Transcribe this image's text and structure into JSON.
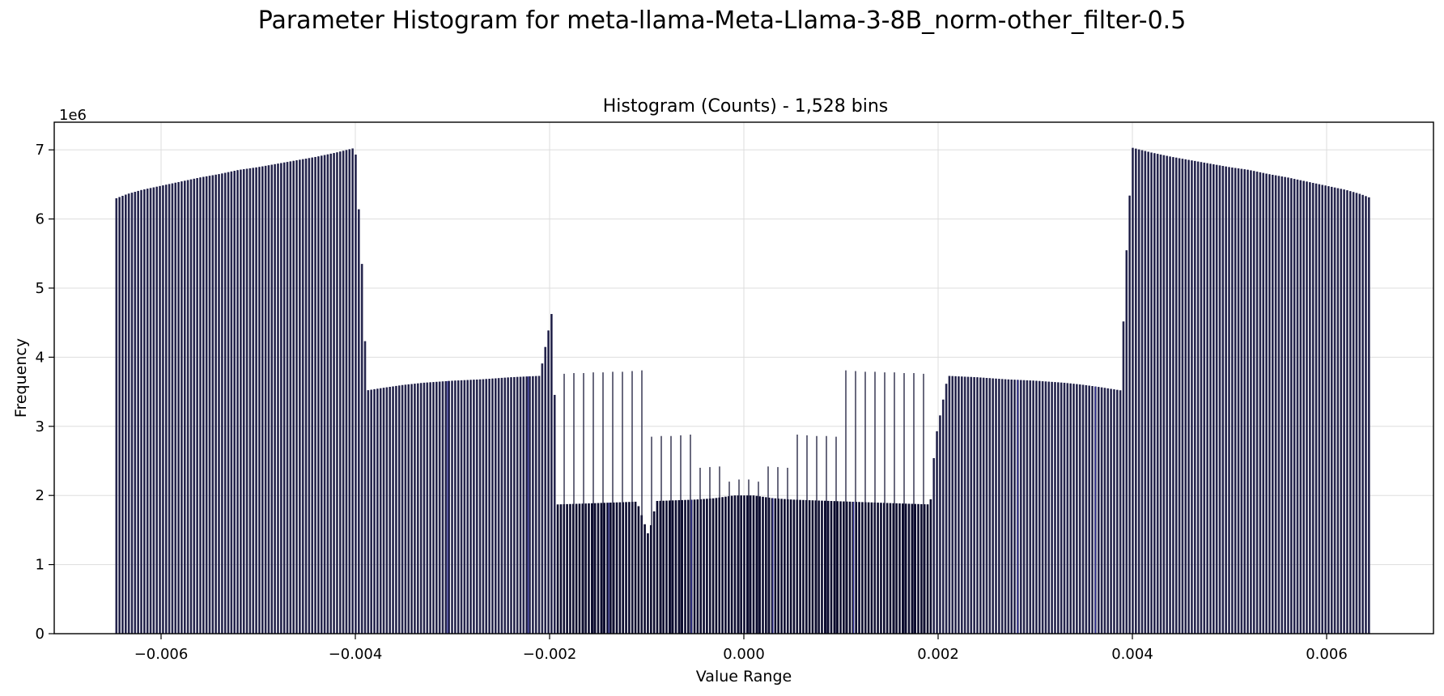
{
  "figure": {
    "title": "Parameter Histogram for meta-llama-Meta-Llama-3-8B_norm-other_filter-0.5"
  },
  "chart_data": {
    "type": "bar",
    "title": "Histogram (Counts) - 1,528 bins",
    "xlabel": "Value Range",
    "ylabel": "Frequency",
    "y_scale_label": "1e6",
    "xlim": [
      -0.0071,
      0.0071
    ],
    "ylim": [
      0,
      7400000
    ],
    "xticks": [
      -0.006,
      -0.004,
      -0.002,
      0.0,
      0.002,
      0.004,
      0.006
    ],
    "xtick_labels": [
      "−0.006",
      "−0.004",
      "−0.002",
      "0.000",
      "0.002",
      "0.004",
      "0.006"
    ],
    "yticks": [
      0,
      1000000,
      2000000,
      3000000,
      4000000,
      5000000,
      6000000,
      7000000
    ],
    "ytick_labels": [
      "0",
      "1",
      "2",
      "3",
      "4",
      "5",
      "6",
      "7"
    ],
    "grid": true,
    "bar_color": "#0b0b2e",
    "edge_color": "#3a3aa0",
    "bins": [
      {
        "x": -0.00646,
        "count": 6300000
      },
      {
        "x": -0.00635,
        "count": 6360000
      },
      {
        "x": -0.0062,
        "count": 6420000
      },
      {
        "x": -0.006,
        "count": 6480000
      },
      {
        "x": -0.0058,
        "count": 6540000
      },
      {
        "x": -0.0056,
        "count": 6600000
      },
      {
        "x": -0.0054,
        "count": 6650000
      },
      {
        "x": -0.0052,
        "count": 6710000
      },
      {
        "x": -0.005,
        "count": 6750000
      },
      {
        "x": -0.0048,
        "count": 6800000
      },
      {
        "x": -0.0046,
        "count": 6850000
      },
      {
        "x": -0.0044,
        "count": 6900000
      },
      {
        "x": -0.0042,
        "count": 6960000
      },
      {
        "x": -0.004,
        "count": 7030000
      },
      {
        "x": -0.00393,
        "count": 5300000
      },
      {
        "x": -0.00388,
        "count": 3520000
      },
      {
        "x": -0.0037,
        "count": 3560000
      },
      {
        "x": -0.0035,
        "count": 3600000
      },
      {
        "x": -0.0033,
        "count": 3630000
      },
      {
        "x": -0.003,
        "count": 3660000
      },
      {
        "x": -0.0027,
        "count": 3680000
      },
      {
        "x": -0.0024,
        "count": 3710000
      },
      {
        "x": -0.0021,
        "count": 3730000
      },
      {
        "x": -0.00197,
        "count": 4700000
      },
      {
        "x": -0.00192,
        "count": 1870000
      },
      {
        "x": -0.0017,
        "count": 1880000
      },
      {
        "x": -0.0015,
        "count": 1890000
      },
      {
        "x": -0.0013,
        "count": 1900000
      },
      {
        "x": -0.0011,
        "count": 1910000
      },
      {
        "x": -0.00098,
        "count": 1420000
      },
      {
        "x": -0.0009,
        "count": 1920000
      },
      {
        "x": -0.0007,
        "count": 1930000
      },
      {
        "x": -0.0005,
        "count": 1940000
      },
      {
        "x": -0.0003,
        "count": 1960000
      },
      {
        "x": -0.0001,
        "count": 2000000
      },
      {
        "x": 0.0001,
        "count": 2000000
      },
      {
        "x": 0.0003,
        "count": 1960000
      },
      {
        "x": 0.0005,
        "count": 1940000
      },
      {
        "x": 0.0007,
        "count": 1930000
      },
      {
        "x": 0.0009,
        "count": 1920000
      },
      {
        "x": 0.0011,
        "count": 1910000
      },
      {
        "x": 0.0013,
        "count": 1900000
      },
      {
        "x": 0.0015,
        "count": 1890000
      },
      {
        "x": 0.0017,
        "count": 1880000
      },
      {
        "x": 0.00192,
        "count": 1870000
      },
      {
        "x": 0.00197,
        "count": 2800000
      },
      {
        "x": 0.0021,
        "count": 3730000
      },
      {
        "x": 0.0024,
        "count": 3710000
      },
      {
        "x": 0.0027,
        "count": 3680000
      },
      {
        "x": 0.003,
        "count": 3660000
      },
      {
        "x": 0.0033,
        "count": 3630000
      },
      {
        "x": 0.0035,
        "count": 3600000
      },
      {
        "x": 0.0037,
        "count": 3560000
      },
      {
        "x": 0.00388,
        "count": 3520000
      },
      {
        "x": 0.00393,
        "count": 5300000
      },
      {
        "x": 0.004,
        "count": 7030000
      },
      {
        "x": 0.0042,
        "count": 6960000
      },
      {
        "x": 0.0044,
        "count": 6900000
      },
      {
        "x": 0.0046,
        "count": 6850000
      },
      {
        "x": 0.0048,
        "count": 6800000
      },
      {
        "x": 0.005,
        "count": 6750000
      },
      {
        "x": 0.0052,
        "count": 6710000
      },
      {
        "x": 0.0054,
        "count": 6650000
      },
      {
        "x": 0.0056,
        "count": 6600000
      },
      {
        "x": 0.0058,
        "count": 6540000
      },
      {
        "x": 0.006,
        "count": 6480000
      },
      {
        "x": 0.0062,
        "count": 6420000
      },
      {
        "x": 0.00635,
        "count": 6360000
      },
      {
        "x": 0.00646,
        "count": 6300000
      }
    ],
    "sparse_spikes": [
      {
        "x": -0.00185,
        "count": 3760000
      },
      {
        "x": -0.00175,
        "count": 3770000
      },
      {
        "x": -0.00165,
        "count": 3770000
      },
      {
        "x": -0.00155,
        "count": 3780000
      },
      {
        "x": -0.00145,
        "count": 3780000
      },
      {
        "x": -0.00135,
        "count": 3790000
      },
      {
        "x": -0.00125,
        "count": 3790000
      },
      {
        "x": -0.00115,
        "count": 3800000
      },
      {
        "x": -0.00105,
        "count": 3810000
      },
      {
        "x": -0.00095,
        "count": 2850000
      },
      {
        "x": -0.00085,
        "count": 2860000
      },
      {
        "x": -0.00075,
        "count": 2860000
      },
      {
        "x": -0.00065,
        "count": 2870000
      },
      {
        "x": -0.00055,
        "count": 2880000
      },
      {
        "x": -0.00045,
        "count": 2400000
      },
      {
        "x": -0.00035,
        "count": 2410000
      },
      {
        "x": -0.00025,
        "count": 2420000
      },
      {
        "x": -0.00015,
        "count": 2200000
      },
      {
        "x": -5e-05,
        "count": 2230000
      },
      {
        "x": 5e-05,
        "count": 2230000
      },
      {
        "x": 0.00015,
        "count": 2200000
      },
      {
        "x": 0.00025,
        "count": 2420000
      },
      {
        "x": 0.00035,
        "count": 2410000
      },
      {
        "x": 0.00045,
        "count": 2400000
      },
      {
        "x": 0.00055,
        "count": 2880000
      },
      {
        "x": 0.00065,
        "count": 2870000
      },
      {
        "x": 0.00075,
        "count": 2860000
      },
      {
        "x": 0.00085,
        "count": 2860000
      },
      {
        "x": 0.00095,
        "count": 2850000
      },
      {
        "x": 0.00105,
        "count": 3810000
      },
      {
        "x": 0.00115,
        "count": 3800000
      },
      {
        "x": 0.00125,
        "count": 3790000
      },
      {
        "x": 0.00135,
        "count": 3790000
      },
      {
        "x": 0.00145,
        "count": 3780000
      },
      {
        "x": 0.00155,
        "count": 3780000
      },
      {
        "x": 0.00165,
        "count": 3770000
      },
      {
        "x": 0.00175,
        "count": 3770000
      },
      {
        "x": 0.00185,
        "count": 3760000
      }
    ]
  }
}
